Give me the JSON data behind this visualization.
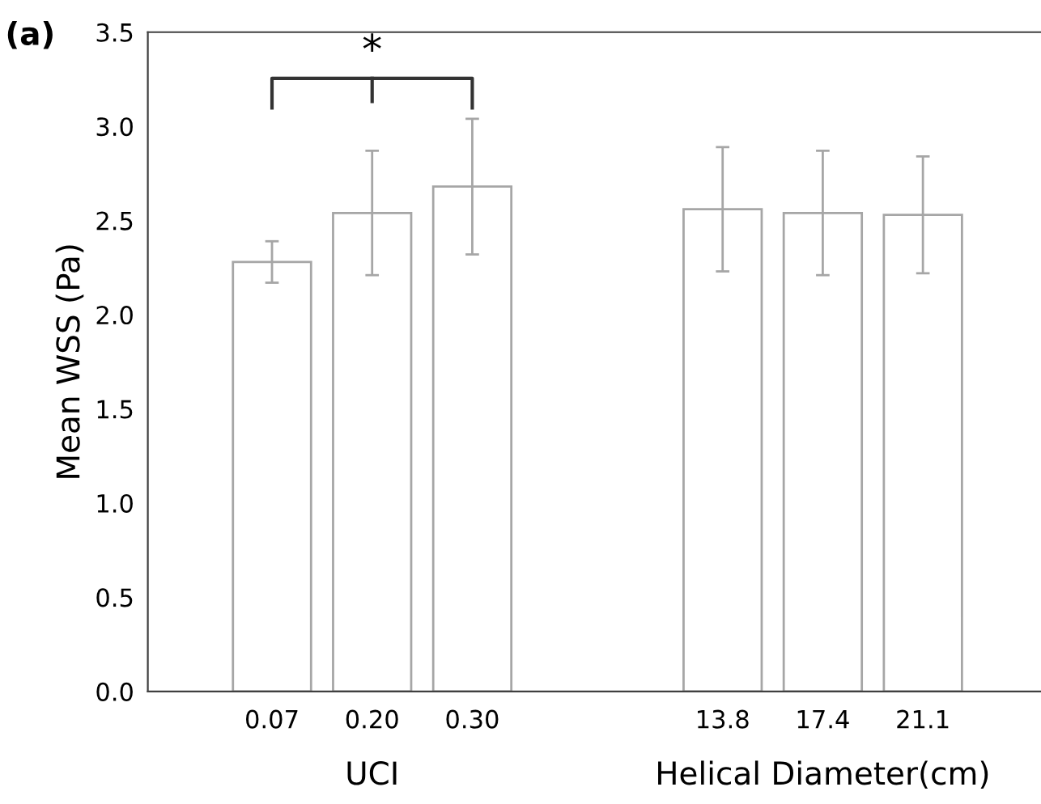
{
  "chart_data": {
    "type": "bar",
    "ylabel": "Mean WSS (Pa)",
    "categories": [
      "0.07",
      "0.20",
      "0.30",
      "13.8",
      "17.4",
      "21.1"
    ],
    "series": [
      {
        "color": "#ffffff",
        "values": [
          2.28,
          2.54,
          2.68,
          2.56,
          2.54,
          2.53
        ],
        "errors": [
          0.11,
          0.33,
          0.36,
          0.33,
          0.33,
          0.31
        ]
      }
    ],
    "ylim": [
      0,
      3.5
    ],
    "yticks": [
      {
        "value": 0,
        "label": "0.0"
      },
      {
        "value": 0.5,
        "label": "0.5"
      },
      {
        "value": 1,
        "label": "1.0"
      },
      {
        "value": 1.5,
        "label": "1.5"
      },
      {
        "value": 2,
        "label": "2.0"
      },
      {
        "value": 2.5,
        "label": "2.5"
      },
      {
        "value": 3,
        "label": "3.0"
      },
      {
        "value": 3.5,
        "label": "3.5"
      }
    ],
    "grid": false,
    "annotations": [
      "(a)",
      "*",
      "UCI",
      "Helical Diameter(cm)"
    ]
  }
}
